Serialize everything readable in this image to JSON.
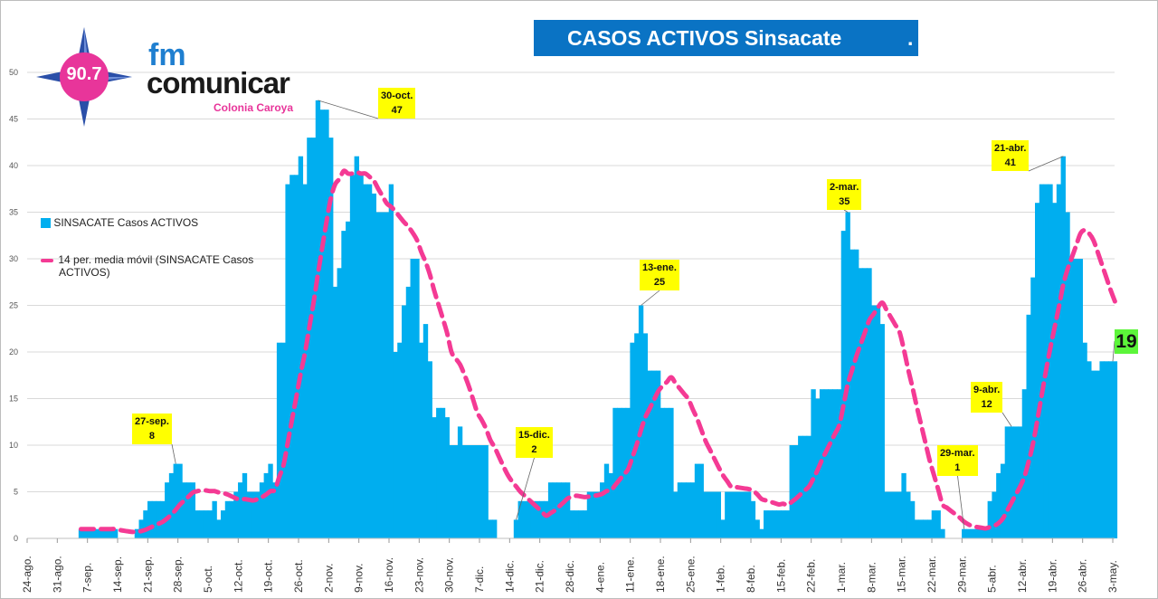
{
  "logo": {
    "frequency": "90.7",
    "fm": "fm",
    "name": "comunicar",
    "city": "Colonia Caroya"
  },
  "colors": {
    "bars": "#00aeef",
    "moving_average": "#f43a94",
    "title_bg": "#0a73c4",
    "callout": "#ffff00",
    "final_label": "#5cf53a"
  },
  "chart_data": {
    "type": "bar",
    "title": "CASOS ACTIVOS Sinsacate",
    "title_suffix": ".",
    "xlabel": "",
    "ylabel": "",
    "ylim": [
      0,
      50
    ],
    "yticks": [
      "0",
      "5",
      "10",
      "15",
      "20",
      "25",
      "30",
      "35",
      "40",
      "45",
      "50"
    ],
    "xticks": [
      "24-ago.",
      "31-ago.",
      "7-sep.",
      "14-sep.",
      "21-sep.",
      "28-sep.",
      "5-oct.",
      "12-oct.",
      "19-oct.",
      "26-oct.",
      "2-nov.",
      "9-nov.",
      "16-nov.",
      "23-nov.",
      "30-nov.",
      "7-dic.",
      "14-dic.",
      "21-dic.",
      "28-dic.",
      "4-ene.",
      "11-ene.",
      "18-ene.",
      "25-ene.",
      "1-feb.",
      "8-feb.",
      "15-feb.",
      "22-feb.",
      "1-mar.",
      "8-mar.",
      "15-mar.",
      "22-mar.",
      "29-mar.",
      "5-abr.",
      "12-abr.",
      "19-abr.",
      "26-abr.",
      "3-may."
    ],
    "x_start": "24-ago.",
    "x_step_days": 1,
    "grid": true,
    "legend_position": "left",
    "series": [
      {
        "name": "SINSACATE Casos ACTIVOS",
        "type": "bar",
        "values": [
          0,
          0,
          0,
          0,
          0,
          0,
          0,
          0,
          0,
          0,
          0,
          0,
          1,
          1,
          1,
          1,
          1,
          1,
          1,
          1,
          1,
          0,
          0,
          0,
          0,
          1,
          2,
          3,
          4,
          4,
          4,
          4,
          6,
          7,
          8,
          8,
          6,
          6,
          6,
          3,
          3,
          3,
          3,
          4,
          2,
          3,
          4,
          4,
          5,
          6,
          7,
          5,
          5,
          5,
          6,
          7,
          8,
          6,
          21,
          21,
          38,
          39,
          39,
          41,
          38,
          43,
          43,
          47,
          46,
          46,
          43,
          27,
          29,
          33,
          34,
          39,
          41,
          39,
          38,
          38,
          37,
          35,
          35,
          35,
          38,
          20,
          21,
          25,
          27,
          30,
          30,
          21,
          23,
          19,
          13,
          14,
          14,
          13,
          10,
          10,
          12,
          10,
          10,
          10,
          10,
          10,
          10,
          2,
          2,
          0,
          0,
          0,
          0,
          2,
          4,
          4,
          4,
          4,
          4,
          4,
          4,
          6,
          6,
          6,
          6,
          6,
          3,
          3,
          3,
          3,
          5,
          5,
          5,
          6,
          8,
          7,
          14,
          14,
          14,
          14,
          21,
          22,
          25,
          22,
          18,
          18,
          18,
          14,
          14,
          14,
          5,
          6,
          6,
          6,
          6,
          8,
          8,
          5,
          5,
          5,
          5,
          2,
          5,
          5,
          5,
          5,
          5,
          5,
          4,
          2,
          1,
          3,
          3,
          3,
          3,
          3,
          3,
          10,
          10,
          11,
          11,
          11,
          16,
          15,
          16,
          16,
          16,
          16,
          16,
          33,
          35,
          31,
          31,
          29,
          29,
          29,
          25,
          25,
          23,
          5,
          5,
          5,
          5,
          7,
          5,
          4,
          2,
          2,
          2,
          2,
          3,
          3,
          1,
          0,
          0,
          0,
          0,
          1,
          1,
          1,
          1,
          1,
          1,
          4,
          5,
          7,
          8,
          12,
          12,
          12,
          12,
          16,
          24,
          28,
          36,
          38,
          38,
          38,
          36,
          38,
          41,
          35,
          30,
          30,
          30,
          21,
          19,
          18,
          18,
          19,
          19,
          19,
          19
        ]
      },
      {
        "name": "14 per. media móvil (SINSACATE Casos ACTIVOS)",
        "type": "line",
        "period": 14,
        "style": "dashed"
      }
    ],
    "legend": {
      "bars_label": "SINSACATE Casos ACTIVOS",
      "ma_label_line1": "14 per. media móvil (SINSACATE Casos",
      "ma_label_line2": "ACTIVOS)"
    },
    "annotations": [
      {
        "date": "27-sep.",
        "value": "8",
        "day": 34
      },
      {
        "date": "30-oct.",
        "value": "47",
        "day": 67
      },
      {
        "date": "15-dic.",
        "value": "2",
        "day": 113
      },
      {
        "date": "13-ene.",
        "value": "25",
        "day": 142
      },
      {
        "date": "2-mar.",
        "value": "35",
        "day": 190
      },
      {
        "date": "29-mar.",
        "value": "1",
        "day": 217
      },
      {
        "date": "9-abr.",
        "value": "12",
        "day": 228
      },
      {
        "date": "21-abr.",
        "value": "41",
        "day": 240
      }
    ],
    "final_value": "19"
  }
}
